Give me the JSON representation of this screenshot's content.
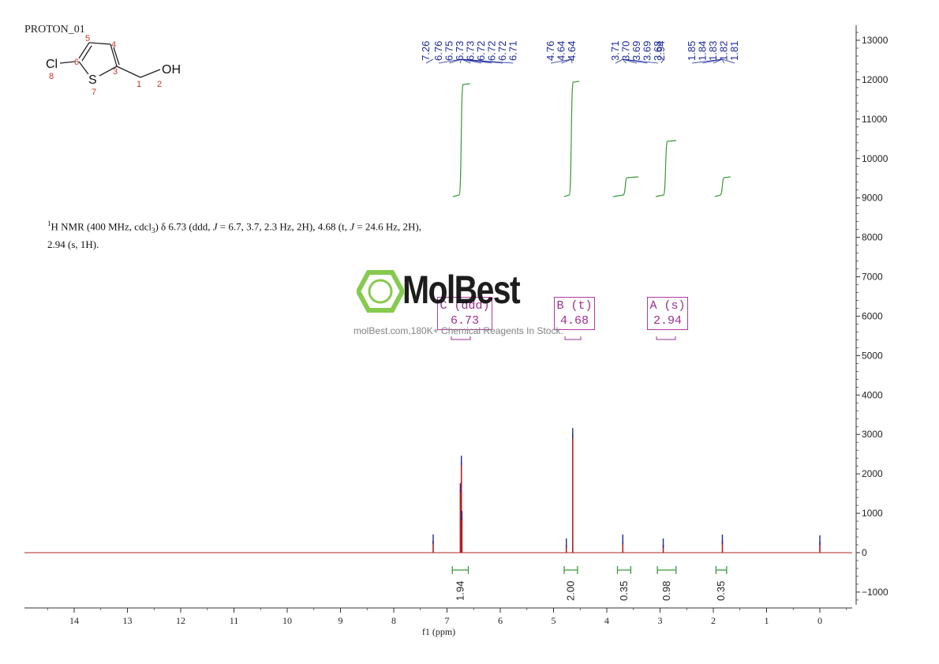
{
  "title": "PROTON_01",
  "molecule": {
    "atoms": [
      {
        "symbol": "Cl",
        "index": "8"
      },
      {
        "symbol": "",
        "index": "6"
      },
      {
        "symbol": "",
        "index": "5"
      },
      {
        "symbol": "",
        "index": "4"
      },
      {
        "symbol": "",
        "index": "3"
      },
      {
        "symbol": "S",
        "index": "7"
      },
      {
        "symbol": "",
        "index": "1"
      },
      {
        "symbol": "OH",
        "index": "2"
      }
    ]
  },
  "nmr_description": {
    "nucleus_sup": "1",
    "part1": "H NMR (400 MHz, cdcl",
    "sub": "3",
    "part2": ") δ 6.73 (ddd, ",
    "j1": "J",
    "part3": " = 6.7, 3.7, 2.3 Hz, 2H), 4.68 (t, ",
    "j2": "J",
    "part4": " = 24.6 Hz, 2H),",
    "line2": "2.94 (s, 1H)."
  },
  "peak_boxes": [
    {
      "label": "C (ddd)",
      "shift": "6.73"
    },
    {
      "label": "B (t)",
      "shift": "4.68"
    },
    {
      "label": "A (s)",
      "shift": "2.94"
    }
  ],
  "watermark": {
    "name": "MolBest",
    "tagline": "molBest.com,180K+ Chemical Reagents In Stock."
  },
  "colors": {
    "spectrum": "#b02020",
    "peak_ticks": "#1c2a9c",
    "integral": "#3a9a3a",
    "axis": "#333333",
    "logo": "#7cc640",
    "annotation": "#9b2f8f"
  },
  "chart_data": {
    "type": "line",
    "xlabel": "f1 (ppm)",
    "x_reversed": true,
    "xlim": [
      15,
      -0.6
    ],
    "x_ticks": [
      "14",
      "13",
      "12",
      "11",
      "10",
      "9",
      "8",
      "7",
      "6",
      "5",
      "4",
      "3",
      "2",
      "1",
      "0"
    ],
    "ylim": [
      -1400,
      13400
    ],
    "y_ticks": [
      "13000",
      "12000",
      "11000",
      "10000",
      "9000",
      "8000",
      "7000",
      "6000",
      "5000",
      "4000",
      "3000",
      "2000",
      "1000",
      "0",
      "-1000"
    ],
    "peak_labels": [
      {
        "group": 1,
        "values": [
          "7.26"
        ]
      },
      {
        "group": 2,
        "values": [
          "6.76",
          "6.75",
          "6.73",
          "6.73",
          "6.72",
          "6.72",
          "6.72",
          "6.71"
        ]
      },
      {
        "group": 3,
        "values": [
          "4.76",
          "4.64",
          "4.64"
        ]
      },
      {
        "group": 4,
        "values": [
          "3.71",
          "3.70",
          "3.69",
          "3.69",
          "3.68"
        ]
      },
      {
        "group": 5,
        "values": [
          "2.94"
        ]
      },
      {
        "group": 6,
        "values": [
          "1.85",
          "1.84",
          "1.83",
          "1.82",
          "1.81"
        ]
      }
    ],
    "peaks": [
      {
        "ppm": 7.26,
        "height": 300
      },
      {
        "ppm": 6.75,
        "height": 1600
      },
      {
        "ppm": 6.73,
        "height": 2300
      },
      {
        "ppm": 6.72,
        "height": 900
      },
      {
        "ppm": 4.76,
        "height": 200
      },
      {
        "ppm": 4.64,
        "height": 3000
      },
      {
        "ppm": 3.7,
        "height": 300
      },
      {
        "ppm": 2.94,
        "height": 200
      },
      {
        "ppm": 1.83,
        "height": 300
      },
      {
        "ppm": 0.0,
        "height": 280
      }
    ],
    "integrals": [
      {
        "from": 6.9,
        "to": 6.6,
        "value": "1.94"
      },
      {
        "from": 4.8,
        "to": 4.55,
        "value": "2.00"
      },
      {
        "from": 3.8,
        "to": 3.55,
        "value": "0.35"
      },
      {
        "from": 3.05,
        "to": 2.7,
        "value": "0.98"
      },
      {
        "from": 1.95,
        "to": 1.75,
        "value": "0.35"
      }
    ]
  }
}
